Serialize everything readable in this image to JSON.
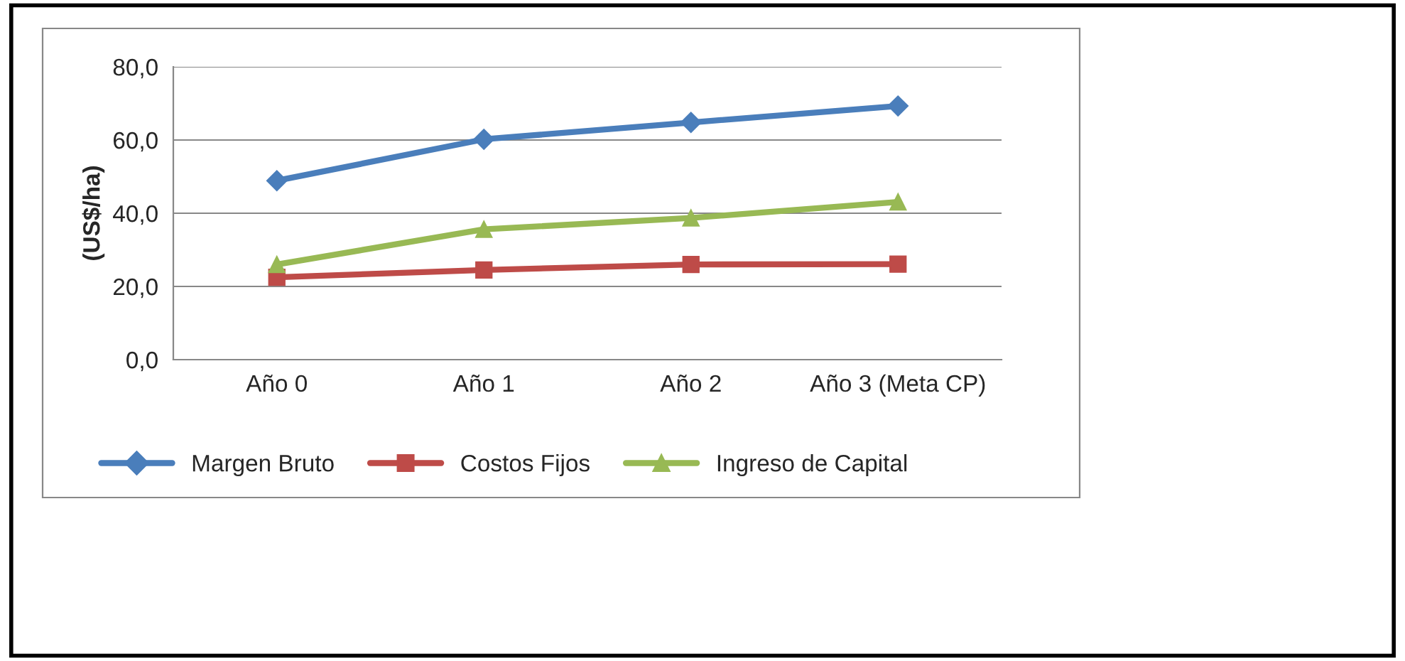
{
  "chart_data": {
    "type": "line",
    "ylabel": "(US$/ha)",
    "categories": [
      "Año 0",
      "Año 1",
      "Año 2",
      "Año 3 (Meta CP)"
    ],
    "series": [
      {
        "name": "Margen Bruto",
        "color": "#4a7ebb",
        "marker": "diamond",
        "values": [
          48.9,
          60.2,
          64.8,
          69.3
        ]
      },
      {
        "name": "Costos Fijos",
        "color": "#be4b48",
        "marker": "square",
        "values": [
          22.5,
          24.5,
          26.0,
          26.1
        ]
      },
      {
        "name": "Ingreso de Capital",
        "color": "#98b954",
        "marker": "triangle",
        "values": [
          26.0,
          35.6,
          38.7,
          43.1
        ]
      }
    ],
    "ylim": [
      0,
      80
    ],
    "yticks": [
      {
        "value": 0,
        "label": "0,0"
      },
      {
        "value": 20,
        "label": "20,0"
      },
      {
        "value": 40,
        "label": "40,0"
      },
      {
        "value": 60,
        "label": "60,0"
      },
      {
        "value": 80,
        "label": "80,0"
      }
    ],
    "grid": "y",
    "legend": "bottom",
    "line_style": "solid"
  }
}
